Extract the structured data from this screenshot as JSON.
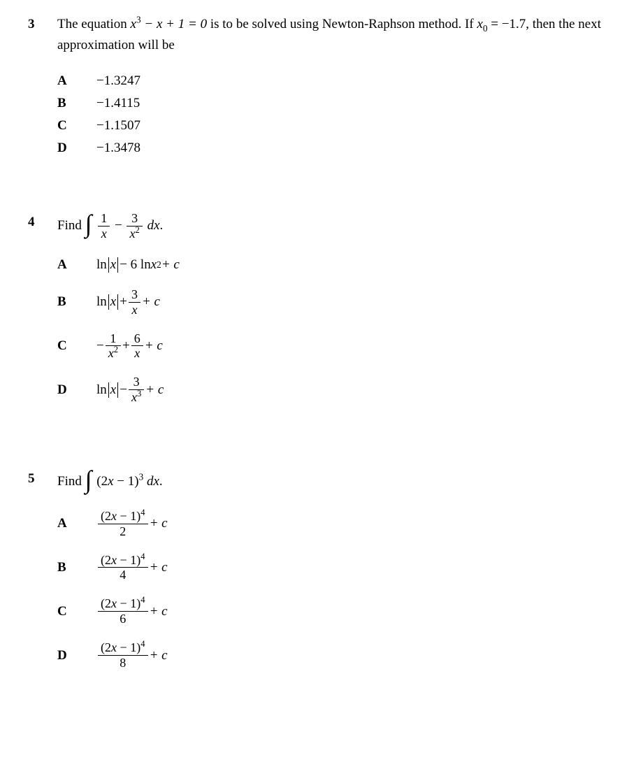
{
  "q3": {
    "number": "3",
    "stem_prefix": "The equation ",
    "eq_var": "x",
    "eq_cube_sup": "3",
    "eq_rest": " − x + 1 = 0",
    "stem_mid": " is to be solved using Newton-Raphson method. If ",
    "x0_var": "x",
    "x0_sub": "0",
    "x0_val": " = −1.7,",
    "stem_tail": " then the next approximation will be",
    "options": {
      "A": "−1.3247",
      "B": "−1.4115",
      "C": "−1.1507",
      "D": "−1.3478"
    }
  },
  "q4": {
    "number": "4",
    "find": "Find ",
    "frac1_num": "1",
    "frac1_den_var": "x",
    "frac2_num": "3",
    "frac2_den_var": "x",
    "frac2_den_sup": "2",
    "dx_var": "dx",
    "optA": {
      "ln": "ln",
      "abs_var": "x",
      "mid": " − 6 ln ",
      "x2_var": "x",
      "x2_sup": "2",
      "tail": " + c"
    },
    "optB": {
      "ln": "ln",
      "abs_var": "x",
      "plus": " + ",
      "frac_num": "3",
      "frac_den_var": "x",
      "tail": " + c"
    },
    "optC": {
      "lead": "− ",
      "f1_num": "1",
      "f1_den_var": "x",
      "f1_den_sup": "2",
      "plus": " + ",
      "f2_num": "6",
      "f2_den_var": "x",
      "tail": " + c"
    },
    "optD": {
      "ln": "ln",
      "abs_var": "x",
      "minus": " − ",
      "frac_num": "3",
      "frac_den_var": "x",
      "frac_den_sup": "3",
      "tail": " + c"
    },
    "labels": {
      "A": "A",
      "B": "B",
      "C": "C",
      "D": "D"
    }
  },
  "q5": {
    "number": "5",
    "find": "Find ",
    "paren_inner_2var": "2",
    "paren_inner_x": "x",
    "paren_inner_minus1": " − 1",
    "cube_sup": "3",
    "dx_var": "dx",
    "optCommon": {
      "num_2": "2",
      "num_x": "x",
      "num_minus1": " − 1",
      "pow4": "4",
      "plus_c": " + c"
    },
    "optA_den": "2",
    "optB_den": "4",
    "optC_den": "6",
    "optD_den": "8",
    "labels": {
      "A": "A",
      "B": "B",
      "C": "C",
      "D": "D"
    }
  }
}
